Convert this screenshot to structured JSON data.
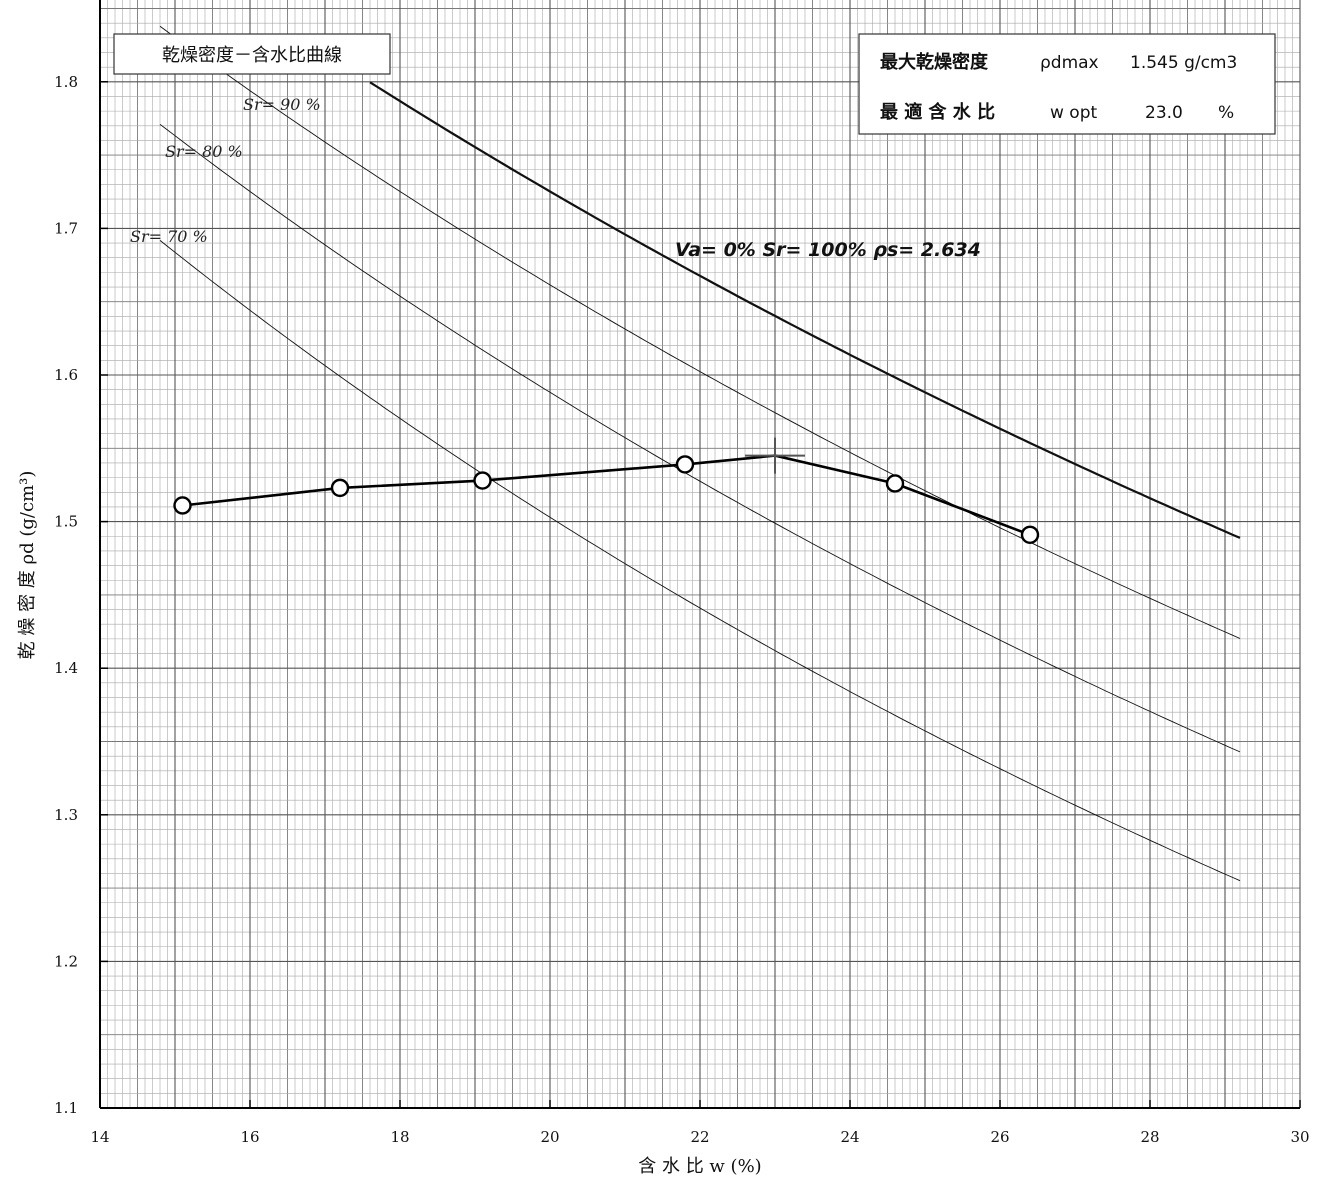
{
  "chart_data": {
    "type": "line",
    "title": "乾燥密度－含水比曲線",
    "xlabel": "含 水 比 w (%)",
    "ylabel": "乾 燥 密 度 ρd (g/cm³)",
    "xlim": [
      14,
      30
    ],
    "ylim": [
      1.1,
      1.85
    ],
    "x_ticks": [
      "14",
      "16",
      "18",
      "20",
      "22",
      "24",
      "26",
      "28",
      "30"
    ],
    "y_ticks": [
      "1.1",
      "1.2",
      "1.3",
      "1.4",
      "1.5",
      "1.6",
      "1.7",
      "1.8"
    ],
    "grid": true,
    "series": [
      {
        "x": [
          15.1,
          17.2,
          19.1,
          21.8,
          24.6,
          26.4
        ],
        "y": [
          1.511,
          1.523,
          1.528,
          1.539,
          1.526,
          1.491
        ]
      }
    ],
    "peak_marker": {
      "x": 23.0,
      "y": 1.545
    },
    "saturation_curves": [
      {
        "label": "Va= 0%  Sr= 100%  ρs= 2.634",
        "sr": 100,
        "x_range": [
          17.6,
          29.2
        ]
      },
      {
        "label": "Sr= 90 %",
        "sr": 90,
        "x_range": [
          14.8,
          29.2
        ]
      },
      {
        "label": "Sr= 80 %",
        "sr": 80,
        "x_range": [
          14.8,
          29.2
        ]
      },
      {
        "label": "Sr= 70 %",
        "sr": 70,
        "x_range": [
          14.8,
          29.2
        ]
      }
    ],
    "particle_density": 2.634,
    "legend_box": {
      "row1_label": "最大乾燥密度",
      "row1_symbol": "ρdmax",
      "row1_value": "1.545 g/cm3",
      "row2_label": "最 適 含 水 比",
      "row2_symbol": "w opt",
      "row2_value": "23.0",
      "row2_unit": "%"
    },
    "legend_placement": "top-right"
  }
}
